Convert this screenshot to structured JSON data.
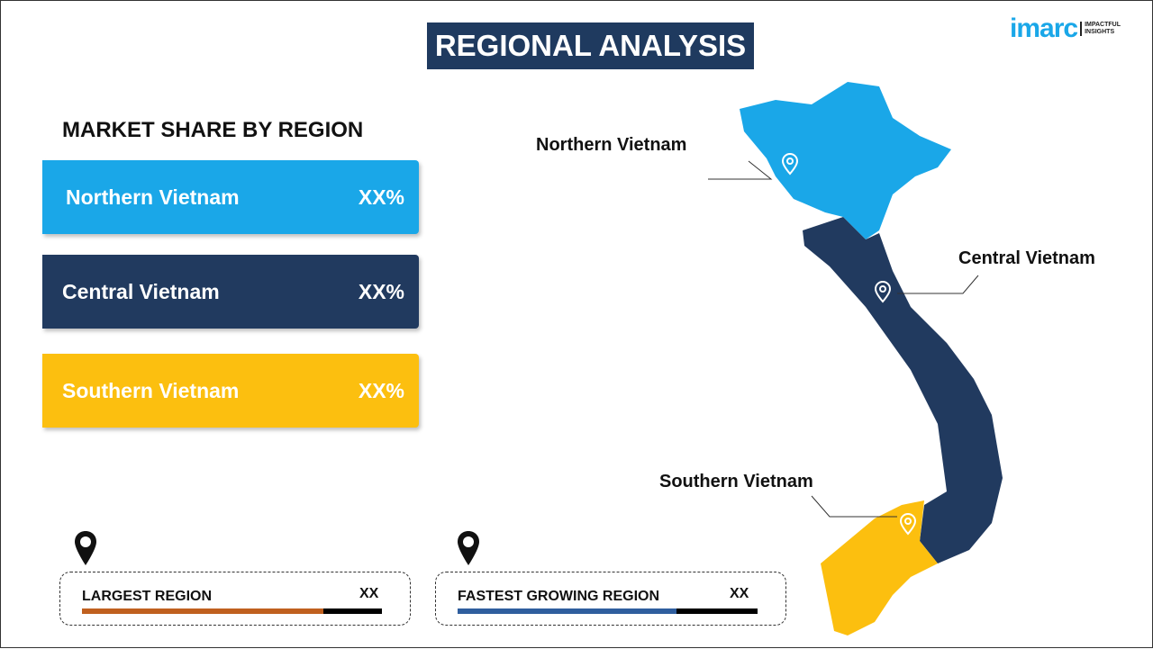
{
  "title": "REGIONAL ANALYSIS",
  "logo": {
    "brand": "imarc",
    "tagline1": "IMPACTFUL",
    "tagline2": "INSIGHTS"
  },
  "subtitle": "MARKET SHARE BY REGION",
  "regions": [
    {
      "name": "Northern Vietnam",
      "value": "XX%",
      "color": "#1aa7e8"
    },
    {
      "name": "Central Vietnam",
      "value": "XX%",
      "color": "#213a5f"
    },
    {
      "name": "Southern Vietnam",
      "value": "XX%",
      "color": "#fcbf0f"
    }
  ],
  "map_labels": [
    "Northern Vietnam",
    "Central Vietnam",
    "Southern Vietnam"
  ],
  "largest": {
    "label": "LARGEST REGION",
    "value": "XX",
    "color": "#c0601f"
  },
  "fastest": {
    "label": "FASTEST GROWING REGION",
    "value": "XX",
    "color": "#2f5e9e"
  }
}
